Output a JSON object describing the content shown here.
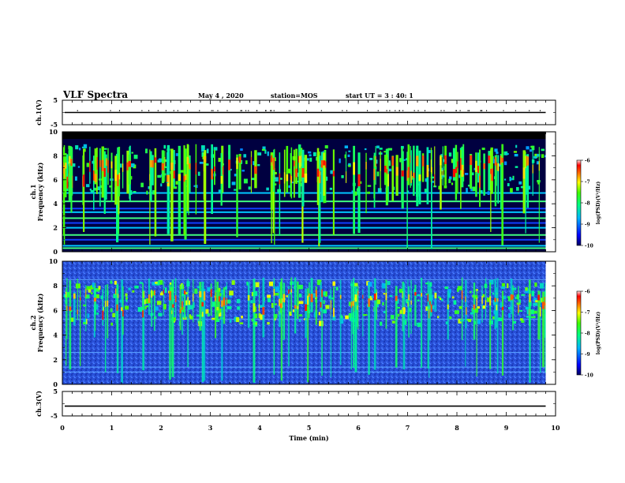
{
  "header": {
    "title": "VLF Spectra",
    "date": "May 4 , 2020",
    "station": "station=MOS",
    "start_ut": "start  UT =  3 : 40: 1"
  },
  "chart_data": [
    {
      "type": "line",
      "ylabel": "ch.1(V)",
      "ylim": [
        -5,
        5
      ],
      "yticks": [
        "5",
        "-5"
      ],
      "series": [
        {
          "value": 0
        }
      ]
    },
    {
      "type": "heatmap",
      "ylabel_line1": "ch.1",
      "ylabel_line2": "Frequency (kHz)",
      "ylim": [
        0,
        10
      ],
      "yticks": [
        "0",
        "2",
        "4",
        "6",
        "8",
        "10"
      ],
      "colorbar": {
        "label": "log(PSD)(V²/Hz)",
        "ticks": [
          "-6",
          "-7",
          "-8",
          "-9",
          "-10"
        ],
        "range": [
          -10,
          -6
        ]
      }
    },
    {
      "type": "heatmap",
      "ylabel_line1": "ch.2",
      "ylabel_line2": "Frequency (kHz)",
      "ylim": [
        0,
        10
      ],
      "yticks": [
        "0",
        "2",
        "4",
        "6",
        "8",
        "10"
      ],
      "colorbar": {
        "label": "log(PSD)(V²/Hz)",
        "ticks": [
          "-6",
          "-7",
          "-8",
          "-9",
          "-10"
        ],
        "range": [
          -10,
          -6
        ]
      }
    },
    {
      "type": "line",
      "ylabel": "ch.3(V)",
      "ylim": [
        -5,
        5
      ],
      "yticks": [
        "5",
        "-5"
      ],
      "series": [
        {
          "value": -1
        }
      ]
    }
  ],
  "xaxis": {
    "label": "Time (min)",
    "xlim": [
      0,
      10
    ],
    "ticks": [
      "0",
      "1",
      "2",
      "3",
      "4",
      "5",
      "6",
      "7",
      "8",
      "9",
      "10"
    ],
    "data_end": 9.8
  }
}
